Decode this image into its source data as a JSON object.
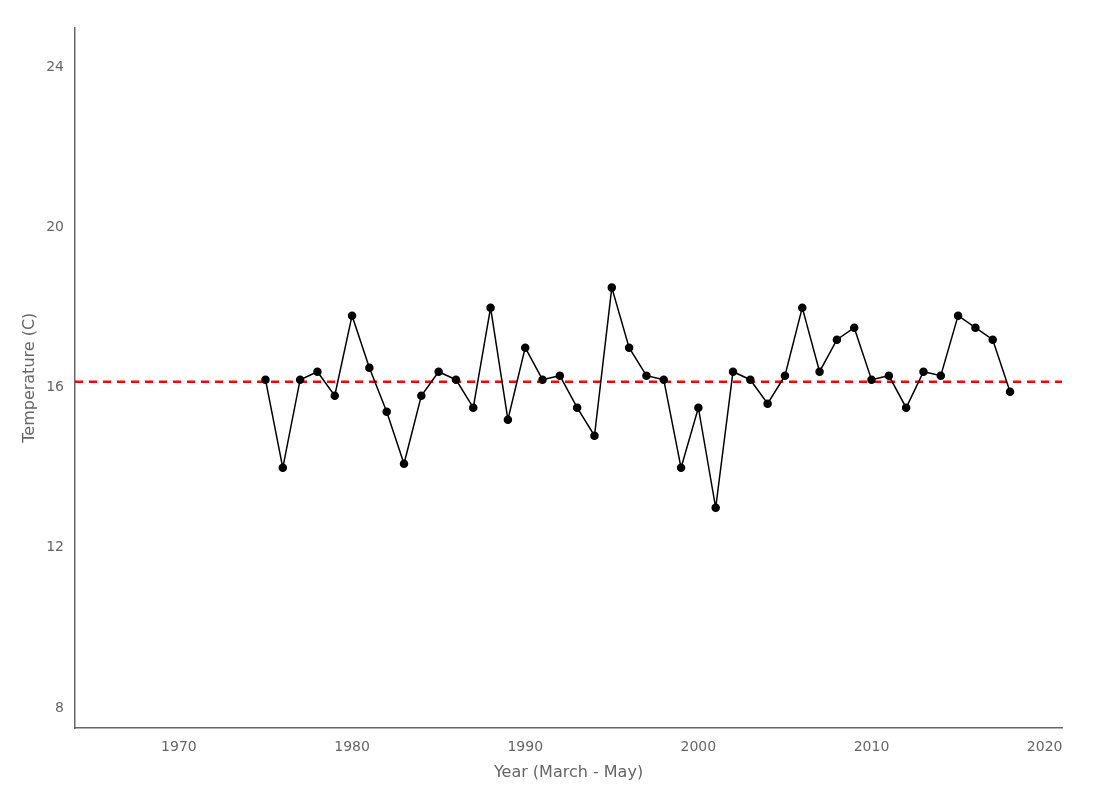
{
  "chart_data": {
    "type": "line",
    "x_label": "Year (March - May)",
    "y_label": "Temperature (C)",
    "x": [
      1975,
      1976,
      1977,
      1978,
      1979,
      1980,
      1981,
      1982,
      1983,
      1984,
      1985,
      1986,
      1987,
      1988,
      1989,
      1990,
      1991,
      1992,
      1993,
      1994,
      1995,
      1996,
      1997,
      1998,
      1999,
      2000,
      2001,
      2002,
      2003,
      2004,
      2005,
      2006,
      2007,
      2008,
      2009,
      2010,
      2011,
      2012,
      2013,
      2014,
      2015,
      2016,
      2017,
      2018
    ],
    "series": [
      {
        "color": "#000000",
        "marker": "circle",
        "line_style": "solid",
        "values": [
          16.2,
          14.0,
          16.2,
          16.4,
          15.8,
          17.8,
          16.5,
          15.4,
          14.1,
          15.8,
          16.4,
          16.2,
          15.5,
          18.0,
          15.2,
          17.0,
          16.2,
          16.3,
          15.5,
          14.8,
          18.5,
          17.0,
          16.3,
          16.2,
          14.0,
          15.5,
          13.0,
          16.4,
          16.2,
          15.6,
          16.3,
          18.0,
          16.4,
          17.2,
          17.5,
          16.2,
          16.3,
          15.5,
          16.4,
          16.3,
          17.8,
          17.5,
          17.2,
          15.9
        ]
      }
    ],
    "hlines": [
      {
        "value": 16.15,
        "color": "#FF0000",
        "line_style": "dashed"
      }
    ],
    "xlim": [
      1964,
      2021
    ],
    "ylim": [
      7.5,
      25.0
    ],
    "xticks": [
      1970,
      1980,
      1990,
      2000,
      2010,
      2020
    ],
    "yticks": [
      8,
      12,
      16,
      20,
      24
    ],
    "grid": false,
    "legend": false
  }
}
